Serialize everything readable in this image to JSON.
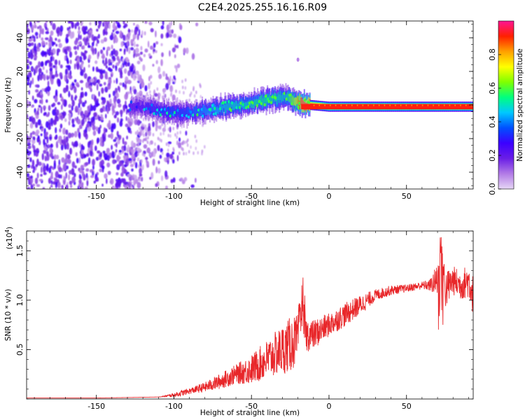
{
  "figure_title": "C2E4.2025.255.16.16.R09",
  "colors": {
    "snr_line": "#e8272a",
    "axis": "#000000",
    "colorbar_stops": [
      "#e6d6f5",
      "#b27be6",
      "#6a1ee6",
      "#3c00ff",
      "#0050ff",
      "#00c8ff",
      "#00ff7f",
      "#7fff00",
      "#ffff00",
      "#ffa000",
      "#ff2000",
      "#ff1493"
    ]
  },
  "chart_data": [
    {
      "type": "heatmap",
      "title": "C2E4.2025.255.16.16.R09",
      "xlabel": "Height of straight line (km)",
      "ylabel": "Frequency (Hz)",
      "xlim": [
        -195,
        93
      ],
      "ylim": [
        -50,
        50
      ],
      "xticks": [
        -150,
        -100,
        -50,
        0,
        50
      ],
      "yticks": [
        -40,
        -20,
        0,
        20,
        40
      ],
      "xtick_labels": [
        "-150",
        "-100",
        "-50",
        "0",
        "50"
      ],
      "ytick_labels": [
        "-40",
        "-20",
        "0",
        "20",
        "40"
      ],
      "colorbar": {
        "label": "Normalized spectral amplitude",
        "range": [
          0,
          1
        ],
        "ticks": [
          0.0,
          0.2,
          0.4,
          0.6,
          0.8
        ],
        "tick_labels": [
          "0.0",
          "0.2",
          "0.4",
          "0.6",
          "0.8"
        ]
      },
      "ridge_trace": {
        "description_points_height_km": [
          -125,
          -115,
          -105,
          -95,
          -85,
          -75,
          -65,
          -55,
          -45,
          -35,
          -28,
          -22,
          -18,
          -12,
          0,
          20,
          40,
          60,
          80,
          93
        ],
        "frequency_hz": [
          -1,
          -2,
          -4,
          -5,
          -4,
          -3,
          -1,
          0,
          2,
          4,
          5,
          2,
          1,
          0,
          -1,
          -1,
          -1,
          -1,
          -1,
          -1
        ],
        "peak_amplitude": [
          0.25,
          0.3,
          0.35,
          0.35,
          0.4,
          0.45,
          0.5,
          0.5,
          0.55,
          0.55,
          0.5,
          0.7,
          0.95,
          0.95,
          0.95,
          0.95,
          0.95,
          0.95,
          0.95,
          0.95
        ]
      }
    },
    {
      "type": "line",
      "xlabel": "Height of straight line (km)",
      "ylabel": "SNR (10 * v/v)",
      "y_scale_label": "(x10",
      "y_scale_exponent": "4",
      "y_scale_close": ")",
      "xlim": [
        -195,
        93
      ],
      "ylim": [
        0,
        1.7
      ],
      "xticks": [
        -150,
        -100,
        -50,
        0,
        50
      ],
      "yticks": [
        0.5,
        1.0,
        1.5
      ],
      "xtick_labels": [
        "-150",
        "-100",
        "-50",
        "0",
        "50"
      ],
      "ytick_labels": [
        "0.5",
        "1.0",
        "1.5"
      ],
      "series": [
        {
          "name": "SNR",
          "x": [
            -195,
            -150,
            -110,
            -100,
            -95,
            -90,
            -80,
            -70,
            -60,
            -50,
            -40,
            -30,
            -25,
            -20,
            -17,
            -15,
            -10,
            -5,
            0,
            5,
            10,
            20,
            30,
            40,
            50,
            60,
            65,
            70,
            72,
            75,
            80,
            85,
            90,
            93
          ],
          "y": [
            0.01,
            0.01,
            0.02,
            0.04,
            0.06,
            0.08,
            0.12,
            0.18,
            0.25,
            0.3,
            0.4,
            0.5,
            0.55,
            0.6,
            1.32,
            0.65,
            0.65,
            0.7,
            0.75,
            0.8,
            0.85,
            0.95,
            1.05,
            1.1,
            1.12,
            1.15,
            1.15,
            1.2,
            1.6,
            1.1,
            1.2,
            1.15,
            1.2,
            1.05
          ],
          "noise_amplitude": [
            0,
            0,
            0,
            0.02,
            0.03,
            0.03,
            0.05,
            0.08,
            0.1,
            0.15,
            0.2,
            0.25,
            0.28,
            0.25,
            0.2,
            0.18,
            0.15,
            0.14,
            0.12,
            0.12,
            0.12,
            0.1,
            0.06,
            0.05,
            0.04,
            0.04,
            0.06,
            0.18,
            0.25,
            0.2,
            0.15,
            0.15,
            0.18,
            0.2
          ]
        }
      ]
    }
  ]
}
